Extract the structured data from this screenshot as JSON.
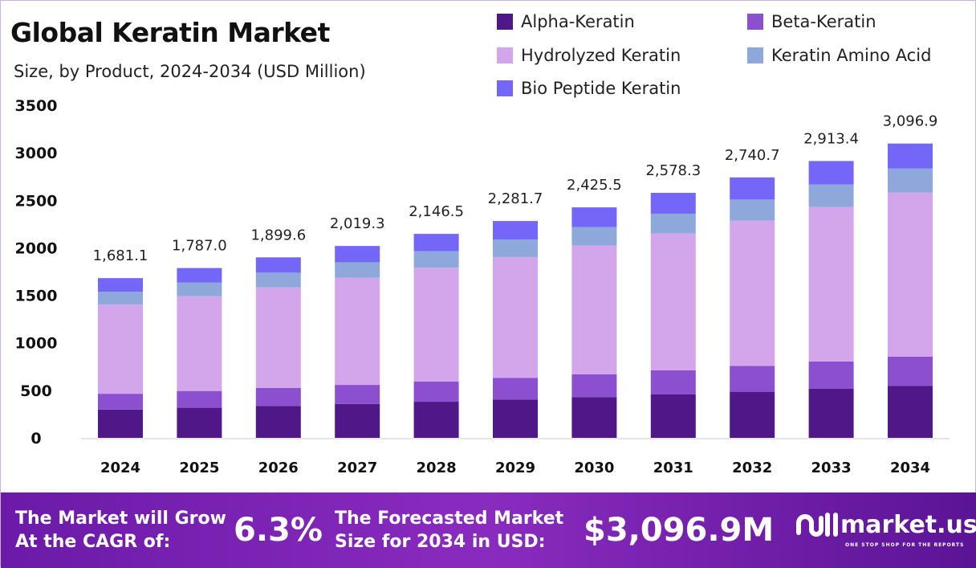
{
  "title": "Global Keratin Market",
  "subtitle": "Size, by Product, 2024-2034 (USD Million)",
  "chart_data": {
    "type": "stacked-bar",
    "title": "Global Keratin Market",
    "subtitle": "Size, by Product, 2024-2034 (USD Million)",
    "categories": [
      "2024",
      "2025",
      "2026",
      "2027",
      "2028",
      "2029",
      "2030",
      "2031",
      "2032",
      "2033",
      "2034"
    ],
    "ylim": [
      0,
      3500
    ],
    "yticks": [
      0,
      500,
      1000,
      1500,
      2000,
      2500,
      3000,
      3500
    ],
    "grid": false,
    "legend_position": "top-right",
    "series": [
      {
        "name": "Alpha-Keratin",
        "color": "#4f1787",
        "values": [
          297.6,
          316.3,
          336.2,
          357.4,
          379.9,
          403.9,
          429.3,
          456.4,
          485.1,
          515.7,
          548.2
        ]
      },
      {
        "name": "Beta-Keratin",
        "color": "#8b4fcf",
        "values": [
          166.4,
          176.9,
          188.1,
          199.9,
          212.5,
          225.9,
          240.1,
          255.2,
          271.3,
          288.4,
          306.6
        ]
      },
      {
        "name": "Hydrolyzed Keratin",
        "color": "#d3a6ec",
        "values": [
          938.1,
          997.1,
          1060.0,
          1126.8,
          1197.7,
          1273.2,
          1353.4,
          1438.7,
          1529.3,
          1625.7,
          1728.1
        ]
      },
      {
        "name": "Keratin Amino Acid",
        "color": "#8ea8dc",
        "values": [
          136.2,
          144.7,
          153.9,
          163.6,
          173.9,
          184.8,
          196.5,
          208.8,
          222.0,
          236.0,
          250.8
        ]
      },
      {
        "name": "Bio Peptide Keratin",
        "color": "#7466f6",
        "values": [
          142.8,
          152.0,
          161.4,
          171.6,
          182.5,
          193.9,
          206.2,
          219.2,
          233.0,
          247.6,
          263.2
        ]
      }
    ],
    "totals": [
      1681.1,
      1787.0,
      1899.6,
      2019.3,
      2146.5,
      2281.7,
      2425.5,
      2578.3,
      2740.7,
      2913.4,
      3096.9
    ],
    "total_labels": [
      "1,681.1",
      "1,787.0",
      "1,899.6",
      "2,019.3",
      "2,146.5",
      "2,281.7",
      "2,425.5",
      "2,578.3",
      "2,740.7",
      "2,913.4",
      "3,096.9"
    ]
  },
  "footer": {
    "cagr_label_1": "The Market will Grow",
    "cagr_label_2": "At the CAGR of:",
    "cagr_value": "6.3%",
    "forecast_label_1": "The Forecasted Market",
    "forecast_label_2": "Size for 2034 in USD:",
    "forecast_value": "$3,096.9M",
    "logo_text": "market.us",
    "logo_tagline": "ONE STOP SHOP FOR THE REPORTS"
  }
}
